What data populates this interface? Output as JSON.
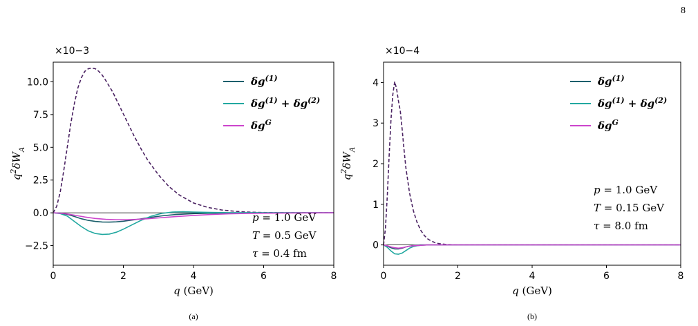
{
  "page_number": "8",
  "chart_data": [
    {
      "type": "line",
      "caption": "(a)",
      "multiplier": "×10−3",
      "xlabel": "q (GeV)",
      "ylabel": "q2 δWA",
      "xlim": [
        0,
        8
      ],
      "ylim": [
        -4.0,
        11.5
      ],
      "xticks": [
        0,
        2,
        4,
        6,
        8
      ],
      "xtick_labels": [
        "0",
        "2",
        "4",
        "6",
        "8"
      ],
      "yticks": [
        -2.5,
        0,
        2.5,
        5,
        7.5,
        10
      ],
      "ytick_labels": [
        "−2.5",
        "0.0",
        "2.5",
        "5.0",
        "7.5",
        "10.0"
      ],
      "legend": [
        "δg(1)",
        "δg(1) + δg(2)",
        "δgG"
      ],
      "annotations": [
        "p = 1.0 GeV",
        "T = 0.5 GeV",
        "τ = 0.4 fm"
      ],
      "series": [
        {
          "color": "#4a2262",
          "style": "dashed",
          "x": [
            0,
            0.1,
            0.2,
            0.3,
            0.4,
            0.5,
            0.6,
            0.7,
            0.8,
            0.9,
            1.0,
            1.1,
            1.2,
            1.3,
            1.4,
            1.5,
            1.7,
            1.9,
            2.1,
            2.3,
            2.5,
            2.7,
            3.0,
            3.3,
            3.6,
            4.0,
            4.4,
            4.8,
            5.2,
            5.6,
            6.0,
            6.5,
            7.0,
            8.0
          ],
          "y": [
            0,
            0.5,
            1.6,
            3.2,
            5.0,
            6.8,
            8.3,
            9.5,
            10.3,
            10.8,
            11.0,
            11.05,
            11.0,
            10.8,
            10.5,
            10.1,
            9.2,
            8.1,
            7.0,
            5.9,
            4.9,
            4.0,
            2.9,
            2.0,
            1.35,
            0.75,
            0.42,
            0.22,
            0.11,
            0.05,
            0.02,
            0.01,
            0,
            0
          ]
        },
        {
          "name": "δg(1)",
          "color": "#1b5f6b",
          "style": "solid",
          "x": [
            0,
            0.2,
            0.4,
            0.6,
            0.8,
            1.0,
            1.2,
            1.4,
            1.6,
            1.8,
            2.0,
            2.2,
            2.5,
            2.8,
            3.1,
            3.5,
            4.0,
            4.5,
            5.0,
            6.0,
            7.0,
            8.0
          ],
          "y": [
            0,
            -0.03,
            -0.12,
            -0.28,
            -0.45,
            -0.58,
            -0.66,
            -0.7,
            -0.71,
            -0.69,
            -0.64,
            -0.57,
            -0.46,
            -0.34,
            -0.23,
            -0.13,
            -0.06,
            -0.03,
            -0.01,
            0,
            0,
            0
          ]
        },
        {
          "name": "δg(1) + δg(2)",
          "color": "#22a8a0",
          "style": "solid",
          "x": [
            0,
            0.2,
            0.4,
            0.6,
            0.8,
            1.0,
            1.2,
            1.4,
            1.6,
            1.8,
            2.0,
            2.2,
            2.5,
            2.8,
            3.1,
            3.4,
            3.7,
            4.0,
            4.5,
            5.0,
            6.0,
            7.0,
            8.0
          ],
          "y": [
            0,
            -0.06,
            -0.25,
            -0.65,
            -1.05,
            -1.38,
            -1.58,
            -1.65,
            -1.62,
            -1.48,
            -1.25,
            -0.98,
            -0.58,
            -0.25,
            -0.04,
            0.06,
            0.08,
            0.06,
            0.03,
            0.01,
            0,
            0,
            0
          ]
        },
        {
          "name": "δgG",
          "color": "#cc44cc",
          "style": "solid",
          "x": [
            0,
            0.3,
            0.6,
            0.9,
            1.2,
            1.5,
            1.8,
            2.1,
            2.4,
            2.7,
            3.0,
            3.5,
            4.0,
            4.5,
            5.0,
            5.5,
            6.0,
            7.0,
            8.0
          ],
          "y": [
            0,
            -0.05,
            -0.18,
            -0.32,
            -0.43,
            -0.5,
            -0.53,
            -0.53,
            -0.5,
            -0.45,
            -0.39,
            -0.29,
            -0.2,
            -0.13,
            -0.08,
            -0.05,
            -0.03,
            -0.01,
            0
          ]
        }
      ]
    },
    {
      "type": "line",
      "caption": "(b)",
      "multiplier": "×10−4",
      "xlabel": "q (GeV)",
      "ylabel": "q2 δWA",
      "xlim": [
        0,
        8
      ],
      "ylim": [
        -0.5,
        4.5
      ],
      "xticks": [
        0,
        2,
        4,
        6,
        8
      ],
      "xtick_labels": [
        "0",
        "2",
        "4",
        "6",
        "8"
      ],
      "yticks": [
        0,
        1,
        2,
        3,
        4
      ],
      "ytick_labels": [
        "0",
        "1",
        "2",
        "3",
        "4"
      ],
      "legend": [
        "δg(1)",
        "δg(1) + δg(2)",
        "δgG"
      ],
      "annotations": [
        "p = 1.0 GeV",
        "T = 0.15 GeV",
        "τ = 8.0 fm"
      ],
      "series": [
        {
          "color": "#4a2262",
          "style": "dashed",
          "x": [
            0,
            0.05,
            0.1,
            0.15,
            0.2,
            0.25,
            0.3,
            0.35,
            0.4,
            0.45,
            0.5,
            0.55,
            0.6,
            0.7,
            0.8,
            0.9,
            1.0,
            1.1,
            1.2,
            1.3,
            1.4,
            1.5,
            1.6,
            1.7,
            2.0,
            8.0
          ],
          "y": [
            0,
            0.4,
            1.2,
            2.2,
            3.1,
            3.7,
            4.02,
            3.85,
            3.55,
            3.3,
            2.85,
            2.35,
            1.9,
            1.28,
            0.85,
            0.56,
            0.36,
            0.23,
            0.14,
            0.09,
            0.05,
            0.03,
            0.02,
            0.01,
            0,
            0
          ]
        },
        {
          "name": "δg(1)",
          "color": "#1b5f6b",
          "style": "solid",
          "x": [
            0,
            0.1,
            0.2,
            0.3,
            0.4,
            0.5,
            0.6,
            0.7,
            0.8,
            1.0,
            1.2,
            1.5,
            8.0
          ],
          "y": [
            0,
            -0.03,
            -0.07,
            -0.1,
            -0.1,
            -0.08,
            -0.05,
            -0.03,
            -0.015,
            0,
            0,
            0,
            0
          ]
        },
        {
          "name": "δg(1) + δg(2)",
          "color": "#22a8a0",
          "style": "solid",
          "x": [
            0,
            0.1,
            0.2,
            0.3,
            0.4,
            0.5,
            0.6,
            0.7,
            0.8,
            0.9,
            1.0,
            1.2,
            1.5,
            8.0
          ],
          "y": [
            0,
            -0.06,
            -0.15,
            -0.22,
            -0.23,
            -0.2,
            -0.14,
            -0.08,
            -0.04,
            -0.02,
            -0.01,
            0,
            0,
            0
          ]
        },
        {
          "name": "δgG",
          "color": "#cc44cc",
          "style": "solid",
          "x": [
            0,
            0.1,
            0.2,
            0.3,
            0.4,
            0.5,
            0.6,
            0.7,
            0.8,
            1.0,
            1.2,
            1.5,
            8.0
          ],
          "y": [
            0,
            -0.02,
            -0.05,
            -0.07,
            -0.08,
            -0.07,
            -0.05,
            -0.03,
            -0.02,
            -0.01,
            0,
            0,
            0
          ]
        }
      ]
    }
  ]
}
